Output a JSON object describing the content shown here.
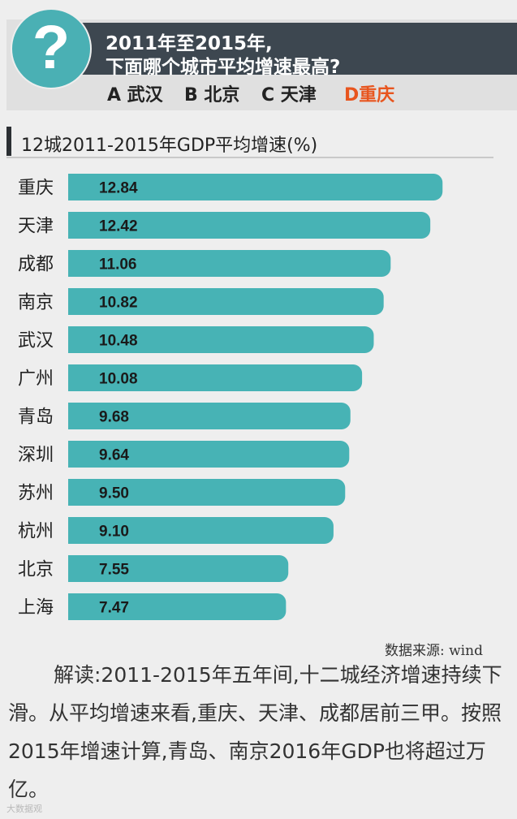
{
  "question": {
    "line1": "2011年至2015年,",
    "line2": "下面哪个城市平均增速最高?",
    "icon": "?",
    "options": {
      "a": "A 武汉",
      "b": "B 北京",
      "c": "C 天津",
      "d": "D重庆"
    }
  },
  "colors": {
    "bar": "#47b3b5",
    "title_bar": "#3d4750",
    "answer": "#e8551e",
    "circle": "#4ab0b4"
  },
  "chart_data": {
    "type": "bar",
    "orientation": "horizontal",
    "title": "12城2011-2015年GDP平均增速(%)",
    "categories": [
      "重庆",
      "天津",
      "成都",
      "南京",
      "武汉",
      "广州",
      "青岛",
      "深圳",
      "苏州",
      "杭州",
      "北京",
      "上海"
    ],
    "values": [
      12.84,
      12.42,
      11.06,
      10.82,
      10.48,
      10.08,
      9.68,
      9.64,
      9.5,
      9.1,
      7.55,
      7.47
    ],
    "value_labels": [
      "12.84",
      "12.42",
      "11.06",
      "10.82",
      "10.48",
      "10.08",
      "9.68",
      "9.64",
      "9.50",
      "9.10",
      "7.55",
      "7.47"
    ],
    "xlim": [
      0,
      13.25
    ],
    "grid": false,
    "legend": "none"
  },
  "source": "数据来源: wind",
  "commentary": "解读:2011-2015年五年间,十二城经济增速持续下滑。从平均增速来看,重庆、天津、成都居前三甲。按照2015年增速计算,青岛、南京2016年GDP也将超过万亿。",
  "watermark": "大数据观"
}
